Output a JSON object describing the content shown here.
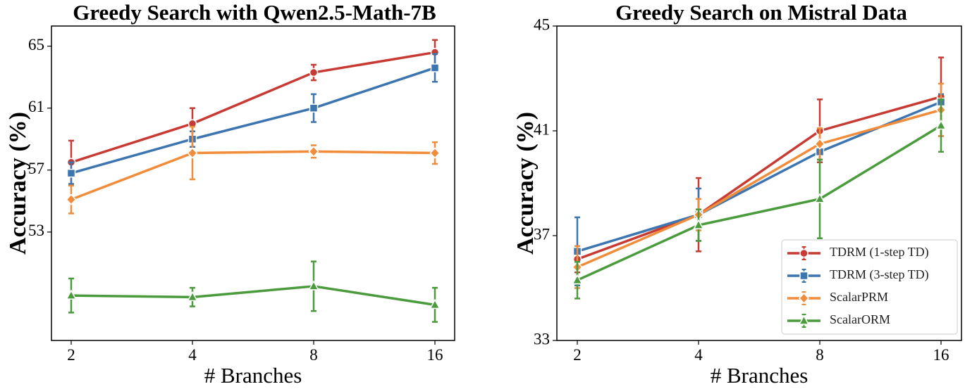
{
  "chart_data": [
    {
      "type": "line",
      "title": "Greedy Search with Qwen2.5-Math-7B",
      "xlabel": "# Branches",
      "ylabel": "Accuracy (%)",
      "x": [
        2,
        4,
        8,
        16
      ],
      "x_tick_labels": [
        "2",
        "4",
        "8",
        "16"
      ],
      "y_ticks": [
        53,
        57,
        61,
        65
      ],
      "y_tick_labels": [
        "53",
        "57",
        "61",
        "65"
      ],
      "ylim": [
        46,
        66.3
      ],
      "grid": false,
      "legend": "none",
      "series": [
        {
          "name": "TDRM (1-step TD)",
          "color": "#c73b34",
          "marker": "circle",
          "values": [
            57.5,
            60.0,
            63.3,
            64.6
          ],
          "err": [
            1.4,
            1.0,
            0.5,
            0.8
          ]
        },
        {
          "name": "TDRM (3-step TD)",
          "color": "#3c75b0",
          "marker": "square",
          "values": [
            56.8,
            59.0,
            61.0,
            63.6
          ],
          "err": [
            0.7,
            0.5,
            0.9,
            0.9
          ]
        },
        {
          "name": "ScalarPRM",
          "color": "#f08c3a",
          "marker": "diamond",
          "values": [
            55.1,
            58.1,
            58.2,
            58.1
          ],
          "err": [
            0.9,
            1.7,
            0.4,
            0.7
          ]
        },
        {
          "name": "ScalarORM",
          "color": "#4a9b3c",
          "marker": "triangle",
          "values": [
            48.9,
            48.8,
            49.5,
            48.3
          ],
          "err": [
            1.1,
            0.6,
            1.6,
            1.1
          ]
        }
      ]
    },
    {
      "type": "line",
      "title": "Greedy Search on Mistral Data",
      "xlabel": "# Branches",
      "ylabel": "Accuracy (%)",
      "x": [
        2,
        4,
        8,
        16
      ],
      "x_tick_labels": [
        "2",
        "4",
        "8",
        "16"
      ],
      "y_ticks": [
        33,
        37,
        41,
        45
      ],
      "y_tick_labels": [
        "33",
        "37",
        "41",
        "45"
      ],
      "ylim": [
        33,
        45
      ],
      "grid": false,
      "legend": "lower-right",
      "series": [
        {
          "name": "TDRM (1-step TD)",
          "color": "#c73b34",
          "marker": "circle",
          "values": [
            36.1,
            37.8,
            41.0,
            42.3
          ],
          "err": [
            0.5,
            1.4,
            1.2,
            1.5
          ]
        },
        {
          "name": "TDRM (3-step TD)",
          "color": "#3c75b0",
          "marker": "square",
          "values": [
            36.4,
            37.8,
            40.2,
            42.1
          ],
          "err": [
            1.3,
            1.0,
            0.3,
            0.3
          ]
        },
        {
          "name": "ScalarPRM",
          "color": "#f08c3a",
          "marker": "diamond",
          "values": [
            35.8,
            37.8,
            40.5,
            41.8
          ],
          "err": [
            0.8,
            0.6,
            0.6,
            1.0
          ]
        },
        {
          "name": "ScalarORM",
          "color": "#4a9b3c",
          "marker": "triangle",
          "values": [
            35.3,
            37.4,
            38.4,
            41.2
          ],
          "err": [
            0.7,
            0.6,
            1.5,
            1.0
          ]
        }
      ]
    }
  ]
}
